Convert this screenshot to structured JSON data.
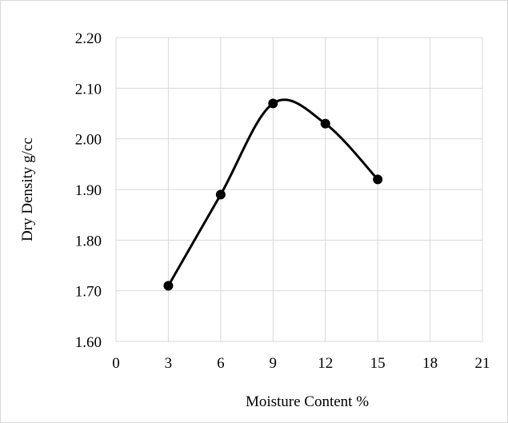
{
  "chart_data": {
    "type": "scatter",
    "xlabel": "Moisture Content %",
    "ylabel": "Dry Density g/cc",
    "xlim": [
      0,
      21
    ],
    "ylim": [
      1.6,
      2.2
    ],
    "x_ticks": [
      "0",
      "3",
      "6",
      "9",
      "12",
      "15",
      "18",
      "21"
    ],
    "y_ticks": [
      "1.60",
      "1.70",
      "1.80",
      "1.90",
      "2.00",
      "2.10",
      "2.20"
    ],
    "grid": true,
    "smooth_line": true,
    "series": [
      {
        "x": [
          3,
          6,
          9,
          12,
          15
        ],
        "y": [
          1.71,
          1.89,
          2.07,
          2.03,
          1.92
        ]
      }
    ],
    "colors": {
      "line": "#000000",
      "marker": "#000000",
      "grid": "#d9d9d9"
    }
  }
}
